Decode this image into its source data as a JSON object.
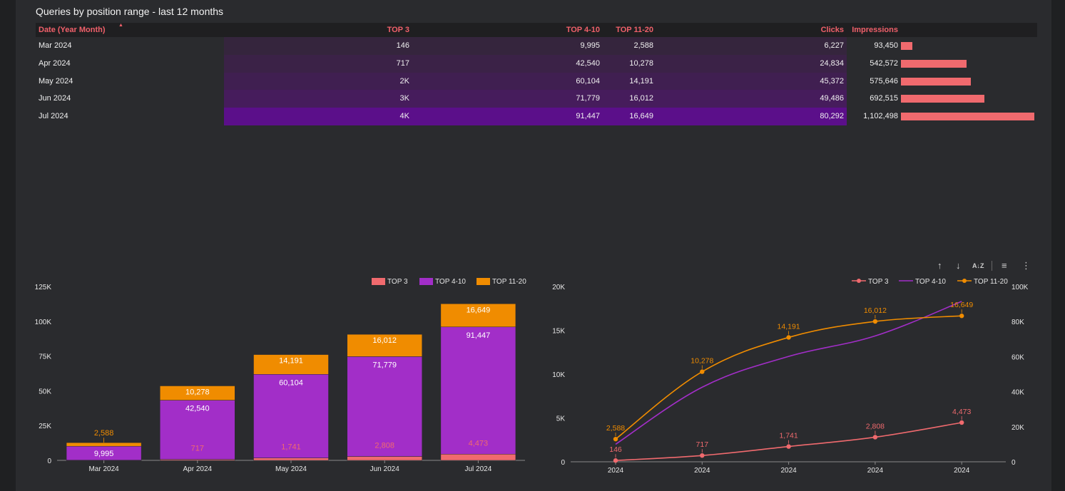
{
  "header": {
    "title": "Queries by position range - last 12 months"
  },
  "table": {
    "columns": [
      "Date (Year Month)",
      "TOP 3",
      "TOP 4-10",
      "TOP 11-20",
      "Clicks",
      "Impressions"
    ],
    "sort_indicator": "▲",
    "rows": [
      {
        "date": "Mar 2024",
        "top3": "146",
        "top4_10": "9,995",
        "top11_20": "2,588",
        "clicks": "6,227",
        "impressions": "93,450",
        "impressions_value": 93450
      },
      {
        "date": "Apr 2024",
        "top3": "717",
        "top4_10": "42,540",
        "top11_20": "10,278",
        "clicks": "24,834",
        "impressions": "542,572",
        "impressions_value": 542572
      },
      {
        "date": "May 2024",
        "top3": "2K",
        "top4_10": "60,104",
        "top11_20": "14,191",
        "clicks": "45,372",
        "impressions": "575,646",
        "impressions_value": 575646
      },
      {
        "date": "Jun 2024",
        "top3": "3K",
        "top4_10": "71,779",
        "top11_20": "16,012",
        "clicks": "49,486",
        "impressions": "692,515",
        "impressions_value": 692515
      },
      {
        "date": "Jul 2024",
        "top3": "4K",
        "top4_10": "91,447",
        "top11_20": "16,649",
        "clicks": "80,292",
        "impressions": "1,102,498",
        "impressions_value": 1102498
      }
    ],
    "heat_colors": [
      "#35253d",
      "#3b2247",
      "#401f51",
      "#461c5c",
      "#5b0f8a"
    ],
    "impressions_bar_color": "#f06a6e"
  },
  "colors": {
    "top3": "#f06a6e",
    "top4_10": "#a22ec8",
    "top11_20": "#f08c00"
  },
  "toolbar": {
    "icons": [
      "arrow-up-icon",
      "arrow-down-icon",
      "sort-az-icon",
      "filter-icon",
      "more-vert-icon"
    ],
    "glyphs": [
      "↑",
      "↓",
      "A↓Z",
      "≡",
      "⋮"
    ]
  },
  "chart_data": [
    {
      "type": "bar",
      "stacked": true,
      "categories": [
        "Mar 2024",
        "Apr 2024",
        "May 2024",
        "Jun 2024",
        "Jul 2024"
      ],
      "series": [
        {
          "name": "TOP 3",
          "values": [
            146,
            717,
            1741,
            2808,
            4473
          ],
          "labels": [
            "",
            "717",
            "1,741",
            "2,808",
            "4,473"
          ]
        },
        {
          "name": "TOP 4-10",
          "values": [
            9995,
            42540,
            60104,
            71779,
            91447
          ],
          "labels": [
            "9,995",
            "42,540",
            "60,104",
            "71,779",
            "91,447"
          ]
        },
        {
          "name": "TOP 11-20",
          "values": [
            2588,
            10278,
            14191,
            16012,
            16649
          ],
          "labels": [
            "2,588",
            "10,278",
            "14,191",
            "16,012",
            "16,649"
          ]
        }
      ],
      "ylim": [
        0,
        125000
      ],
      "yticks": [
        0,
        25000,
        50000,
        75000,
        100000,
        125000
      ],
      "ytick_labels": [
        "0",
        "25K",
        "50K",
        "75K",
        "100K",
        "125K"
      ],
      "legend": "top-right"
    },
    {
      "type": "line",
      "categories": [
        "2024",
        "2024",
        "2024",
        "2024",
        "2024"
      ],
      "series": [
        {
          "name": "TOP 3",
          "axis": "left",
          "values": [
            146,
            717,
            1741,
            2808,
            4473
          ],
          "labels": [
            "146",
            "717",
            "1,741",
            "2,808",
            "4,473"
          ],
          "markers": true
        },
        {
          "name": "TOP 4-10",
          "axis": "right",
          "values": [
            9995,
            42540,
            60104,
            71779,
            91447
          ],
          "markers": false
        },
        {
          "name": "TOP 11-20",
          "axis": "left",
          "values": [
            2588,
            10278,
            14191,
            16012,
            16649
          ],
          "labels": [
            "2,588",
            "10,278",
            "14,191",
            "16,012",
            "16,649"
          ],
          "markers": true
        }
      ],
      "ylim_left": [
        0,
        20000
      ],
      "yticks_left_labels": [
        "0",
        "5K",
        "10K",
        "15K",
        "20K"
      ],
      "ylim_right": [
        0,
        100000
      ],
      "yticks_right_labels": [
        "0",
        "20K",
        "40K",
        "60K",
        "80K",
        "100K"
      ],
      "legend": "top-right"
    }
  ]
}
